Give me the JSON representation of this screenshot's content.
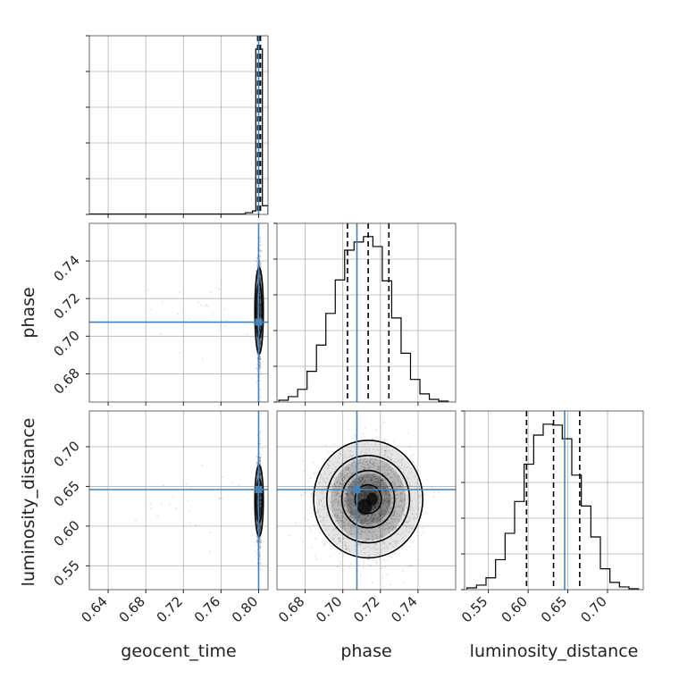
{
  "chart_data": {
    "type": "corner",
    "parameters": [
      "geocent_time",
      "phase",
      "luminosity_distance"
    ],
    "truths": {
      "geocent_time": 0.8,
      "phase": 0.7075,
      "luminosity_distance": 0.646
    },
    "truth_color": "#4682b4",
    "grid": true,
    "axes": {
      "geocent_time": {
        "range": [
          0.62,
          0.81
        ],
        "ticks": [
          0.64,
          0.68,
          0.72,
          0.76,
          0.8
        ],
        "tick_labels": [
          "0.64",
          "0.68",
          "0.72",
          "0.76",
          "0.80"
        ]
      },
      "phase": {
        "range": [
          0.665,
          0.76
        ],
        "ticks": [
          0.68,
          0.7,
          0.72,
          0.74
        ],
        "tick_labels": [
          "0.68",
          "0.70",
          "0.72",
          "0.74"
        ]
      },
      "luminosity_distance": {
        "range": [
          0.52,
          0.745
        ],
        "ticks": [
          0.55,
          0.6,
          0.65,
          0.7
        ],
        "tick_labels": [
          "0.55",
          "0.60",
          "0.65",
          "0.70"
        ]
      }
    },
    "marginals": {
      "geocent_time": {
        "quantiles": [
          0.799,
          0.8005,
          0.802
        ],
        "peak_range": [
          0.797,
          0.804
        ]
      },
      "phase": {
        "bin_edges": [
          0.666,
          0.671,
          0.676,
          0.681,
          0.686,
          0.691,
          0.696,
          0.701,
          0.706,
          0.711,
          0.716,
          0.721,
          0.726,
          0.731,
          0.736,
          0.741,
          0.746,
          0.751,
          0.756
        ],
        "counts": [
          2,
          6,
          14,
          34,
          63,
          98,
          135,
          168,
          177,
          183,
          172,
          134,
          93,
          54,
          25,
          9,
          3,
          1
        ],
        "quantiles": [
          0.7025,
          0.7135,
          0.7245
        ]
      },
      "luminosity_distance": {
        "bin_edges": [
          0.523,
          0.535,
          0.547,
          0.559,
          0.571,
          0.583,
          0.595,
          0.607,
          0.619,
          0.631,
          0.643,
          0.655,
          0.667,
          0.679,
          0.691,
          0.703,
          0.715,
          0.727,
          0.739
        ],
        "counts": [
          2,
          5,
          13,
          33,
          62,
          97,
          138,
          170,
          182,
          181,
          166,
          126,
          92,
          58,
          23,
          8,
          3,
          1
        ],
        "quantiles": [
          0.598,
          0.632,
          0.665
        ]
      }
    }
  }
}
